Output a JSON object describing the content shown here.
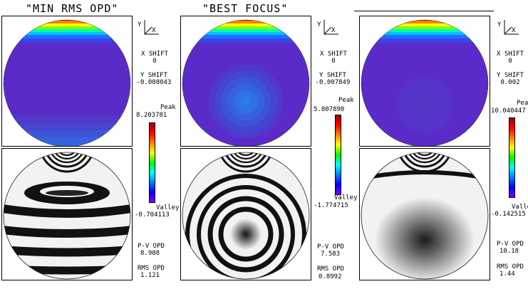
{
  "axis_labels": {
    "y": "Y",
    "x": "X"
  },
  "panels": [
    {
      "title": "\"MIN RMS OPD\"",
      "x_shift_label": "X SHIFT",
      "x_shift": "0",
      "y_shift_label": "Y SHIFT",
      "y_shift": "-0.008043",
      "peak_label": "Peak",
      "peak": "8.203781",
      "valley_label": "Valley",
      "valley": "-0.704113",
      "pv_label": "P-V OPD",
      "pv": "8.908",
      "rms_label": "RMS OPD",
      "rms": "1.121"
    },
    {
      "title": "\"BEST FOCUS\"",
      "x_shift_label": "X SHIFT",
      "x_shift": "0",
      "y_shift_label": "Y SHIFT",
      "y_shift": "-0.007849",
      "peak_label": "Peak",
      "peak": "5.807890",
      "valley_label": "Valley",
      "valley": "-1.774715",
      "pv_label": "P-V OPD",
      "pv": "7.583",
      "rms_label": "RMS OPD",
      "rms": "0.8992"
    },
    {
      "title": "",
      "x_shift_label": "X SHIFT",
      "x_shift": "0",
      "y_shift_label": "Y SHIFT",
      "y_shift": "0.002",
      "peak_label": "Peak",
      "peak": "10.040447",
      "valley_label": "Valley",
      "valley": "-0.142515",
      "pv_label": "P-V OPD",
      "pv": "10.18",
      "rms_label": "RMS OPD",
      "rms": "1.44"
    }
  ],
  "colors": {
    "colorbar": [
      "#a00000",
      "#ff0000",
      "#ff8000",
      "#ffff00",
      "#00ff00",
      "#00ffff",
      "#0080ff",
      "#0000ff",
      "#8000ff"
    ],
    "map_base": "#5a2bc8",
    "map_low": "#3a63e0",
    "background": "#ffffff"
  }
}
